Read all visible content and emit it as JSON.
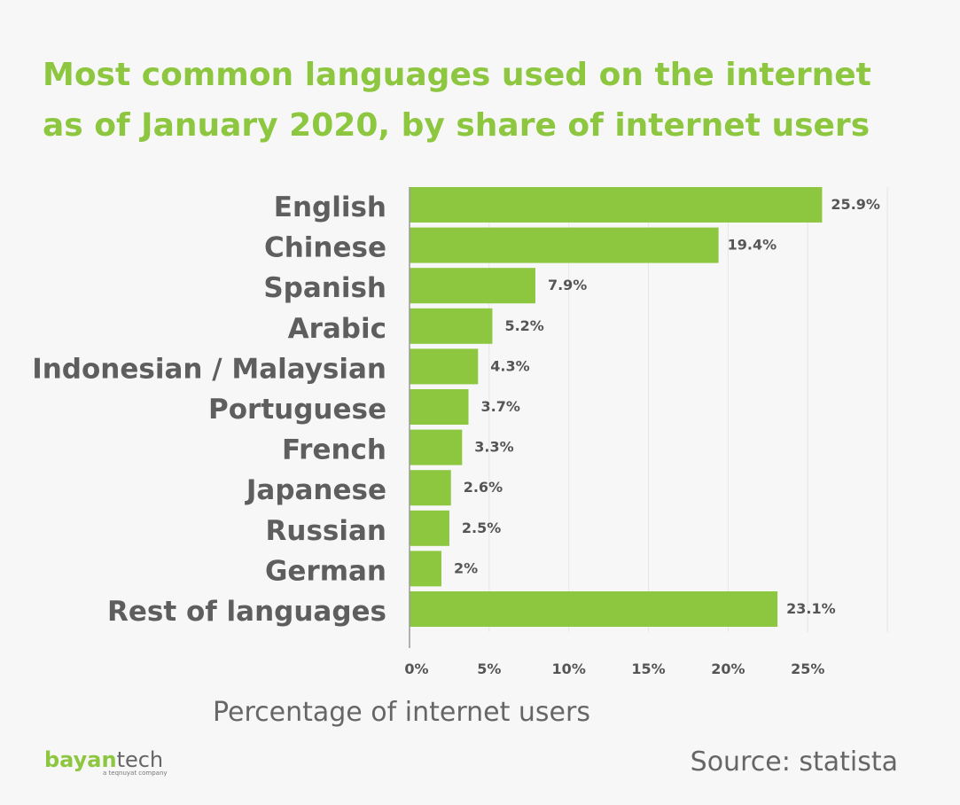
{
  "title_lines": [
    "Most common languages used on the internet",
    "as of January 2020, by share of internet users"
  ],
  "colors": {
    "bar": "#8dc63f",
    "title": "#8dc63f",
    "text": "#5e5e5e"
  },
  "chart_data": {
    "type": "bar",
    "orientation": "horizontal",
    "title": "Most common languages used on the internet as of January 2020, by share of internet users",
    "categories": [
      "English",
      "Chinese",
      "Spanish",
      "Arabic",
      "Indonesian / Malaysian",
      "Portuguese",
      "French",
      "Japanese",
      "Russian",
      "German",
      "Rest of languages"
    ],
    "values": [
      25.9,
      19.4,
      7.9,
      5.2,
      4.3,
      3.7,
      3.3,
      2.6,
      2.5,
      2.0,
      23.1
    ],
    "value_labels": [
      "25.9%",
      "19.4%",
      "7.9%",
      "5.2%",
      "4.3%",
      "3.7%",
      "3.3%",
      "2.6%",
      "2.5%",
      "2%",
      "23.1%"
    ],
    "xlabel": "Percentage of internet users",
    "ylabel": "",
    "xlim": [
      0,
      30
    ],
    "x_ticks": [
      0,
      5,
      10,
      15,
      20,
      25
    ],
    "x_tick_labels": [
      "0%",
      "5%",
      "10%",
      "15%",
      "20%",
      "25%"
    ],
    "grid": "vertical",
    "legend": "none"
  },
  "source": "Source: statista",
  "logo": {
    "part1": "bayan",
    "part2": "tech",
    "tagline": "a teqnuyat company"
  }
}
